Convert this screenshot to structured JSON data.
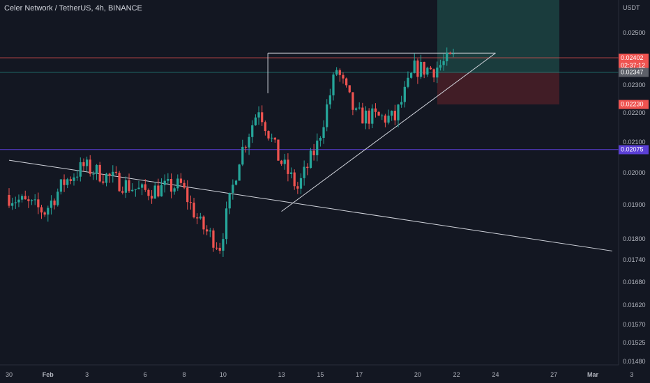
{
  "header": {
    "symbol_title": "Celer Network / TetherUS, 4h, BINANCE",
    "currency": "USDT"
  },
  "colors": {
    "background": "#131722",
    "up": "#26a69a",
    "down": "#ef5350",
    "trendline": "#d1d4dc",
    "horizontal_line": "#5b3fd6",
    "red_level": "#ef5350",
    "teal_level": "#26a69a",
    "target_zone": "#1d4a47",
    "stop_zone": "#4a1f27"
  },
  "price_tags": [
    {
      "name": "last-price",
      "price": "0.02402",
      "countdown": "02:37:12",
      "bg": "#ef5350",
      "value": 0.02402
    },
    {
      "name": "entry-price",
      "price": "0.02347",
      "bg": "#5d6069",
      "value": 0.02347
    },
    {
      "name": "stop-price",
      "price": "0.02230",
      "bg": "#ef5350",
      "value": 0.0223
    },
    {
      "name": "level-price",
      "price": "0.02075",
      "bg": "#5b3fd6",
      "value": 0.02075
    }
  ],
  "chart_data": {
    "type": "candlestick",
    "title": "Celer Network / TetherUS, 4h, BINANCE",
    "interval": "4h",
    "y_axis": {
      "scale": "log",
      "unit": "USDT",
      "ticks": [
        "0.02500",
        "0.02400",
        "0.02300",
        "0.02200",
        "0.02100",
        "0.02000",
        "0.01900",
        "0.01800",
        "0.01740",
        "0.01680",
        "0.01620",
        "0.01570",
        "0.01525",
        "0.01480"
      ],
      "tick_values": [
        0.025,
        0.024,
        0.023,
        0.022,
        0.021,
        0.02,
        0.019,
        0.018,
        0.0174,
        0.0168,
        0.0162,
        0.0157,
        0.01525,
        0.0148
      ]
    },
    "x_axis": {
      "ticks": [
        "30",
        "Feb",
        "3",
        "6",
        "8",
        "10",
        "13",
        "15",
        "17",
        "20",
        "22",
        "24",
        "27",
        "Mar",
        "3"
      ],
      "tick_day_index": [
        0,
        2,
        4,
        7,
        9,
        11,
        14,
        16,
        18,
        21,
        23,
        25,
        28,
        30,
        32
      ]
    },
    "grid": false,
    "approx_closes_daily": [
      {
        "day": "30",
        "close": 0.0193
      },
      {
        "day": "Feb",
        "close": 0.0188
      },
      {
        "day": "3",
        "close": 0.0197
      },
      {
        "day": "4",
        "close": 0.0202
      },
      {
        "day": "6",
        "close": 0.0194
      },
      {
        "day": "8",
        "close": 0.0196
      },
      {
        "day": "9",
        "close": 0.0184
      },
      {
        "day": "10",
        "close": 0.0178
      },
      {
        "day": "11",
        "close": 0.0205
      },
      {
        "day": "12",
        "close": 0.0222
      },
      {
        "day": "13",
        "close": 0.0205
      },
      {
        "day": "14",
        "close": 0.0195
      },
      {
        "day": "15",
        "close": 0.0209
      },
      {
        "day": "16",
        "close": 0.0236
      },
      {
        "day": "17",
        "close": 0.0219
      },
      {
        "day": "19",
        "close": 0.0218
      },
      {
        "day": "20",
        "close": 0.0236
      },
      {
        "day": "21",
        "close": 0.0236
      },
      {
        "day": "22",
        "close": 0.02402
      }
    ],
    "levels": [
      {
        "label": "0.02075",
        "value": 0.02075,
        "kind": "horizontal support"
      },
      {
        "label": "0.02402",
        "value": 0.02402,
        "kind": "last price"
      },
      {
        "label": "0.02347",
        "value": 0.02347,
        "kind": "entry"
      },
      {
        "label": "0.02230",
        "value": 0.0223,
        "kind": "stop"
      }
    ],
    "trendlines": [
      {
        "kind": "descending",
        "from": {
          "day_index": 0,
          "price": 0.0204
        },
        "to": {
          "day_index": 31,
          "price": 0.01765
        }
      },
      {
        "kind": "ascending",
        "from": {
          "day_index": 14,
          "price": 0.0188
        },
        "to": {
          "day_index": 25,
          "price": 0.0242
        }
      },
      {
        "kind": "resistance",
        "from": {
          "day_index": 13.3,
          "price": 0.0242
        },
        "to": {
          "day_index": 25,
          "price": 0.0242
        }
      }
    ],
    "position": {
      "entry": 0.02347,
      "stop": 0.0223,
      "target_top": 0.0255
    }
  }
}
